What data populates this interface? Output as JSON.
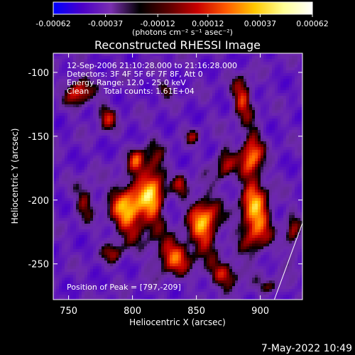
{
  "colorbar": {
    "tick_labels": [
      "-0.00062",
      "-0.00037",
      "-0.00012",
      "0.00012",
      "0.00037",
      "0.00062"
    ],
    "tick_values": [
      -0.00062,
      -0.00037,
      -0.00012,
      0.00012,
      0.00037,
      0.00062
    ],
    "units_label": "(photons cm⁻² s⁻¹ asec⁻²)",
    "range": [
      -0.00062,
      0.00062
    ],
    "colormap_stops": [
      "#0000ff",
      "#4b00c8",
      "#7a2fb0",
      "#000000",
      "#5a0000",
      "#c80000",
      "#ff5a00",
      "#ffc800",
      "#ffff96",
      "#ffffff"
    ]
  },
  "chart_data": {
    "type": "heatmap",
    "title": "Reconstructed RHESSI Image",
    "xlabel": "Heliocentric X (arcsec)",
    "ylabel": "Heliocentric Y (arcsec)",
    "xlim": [
      738,
      933
    ],
    "ylim": [
      -278,
      -85
    ],
    "x_ticks": [
      750,
      800,
      850,
      900
    ],
    "y_ticks": [
      -100,
      -150,
      -200,
      -250
    ],
    "peak": [
      797,
      -209
    ],
    "limb_line": [
      [
        911,
        -278
      ],
      [
        933,
        -218
      ]
    ],
    "annotations": {
      "time_range": "12-Sep-2006 21:10:28.000 to 21:16:28.000",
      "detectors": "Detectors: 3F 4F 5F 6F 7F 8F, Att 0",
      "energy_range": "Energy Range: 12.0 - 25.0 keV",
      "clean_label": "Clean",
      "total_counts": "Total counts: 1.61E+04",
      "peak_position": "Position of Peak = [797,-209]"
    }
  },
  "footer": {
    "date": "7-May-2022 10:49"
  }
}
